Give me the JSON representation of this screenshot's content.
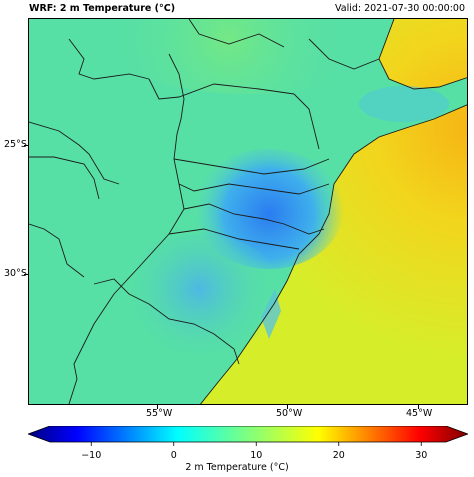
{
  "header": {
    "title": "WRF: 2 m Temperature (°C)",
    "valid": "Valid: 2021-07-30 00:00:00"
  },
  "axes": {
    "lat_ticks": [
      "25°S",
      "30°S"
    ],
    "lon_ticks": [
      "55°W",
      "50°W",
      "45°W"
    ]
  },
  "colorbar": {
    "title": "2 m Temperature (°C)",
    "min": -15,
    "max": 33,
    "tick_values": [
      -10,
      0,
      10,
      20,
      30
    ],
    "tick_labels": [
      "−10",
      "0",
      "10",
      "20",
      "30"
    ],
    "colormap": "jet"
  },
  "colors": {
    "land": "#57e0a5",
    "ocean": "#d6ee2a",
    "cold_core": "#2f86f0",
    "warm_ocean": "#f2c619"
  }
}
